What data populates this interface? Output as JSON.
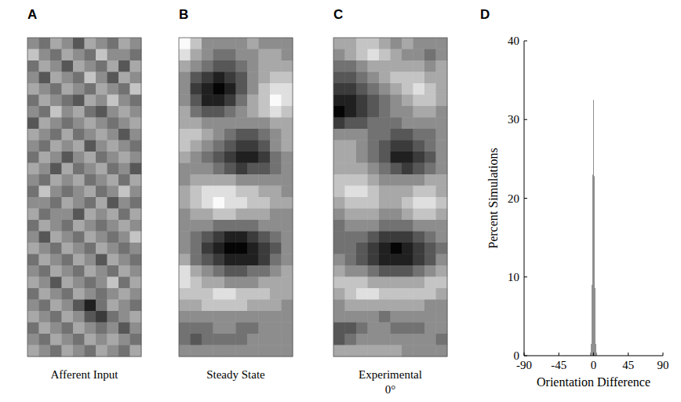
{
  "chart_data": [
    {
      "type": "heatmap",
      "label": "A",
      "title": "Afferent Input",
      "range": [
        0,
        9
      ],
      "cells": [
        [
          5,
          4,
          6,
          5,
          3,
          6,
          5,
          4,
          6,
          5
        ],
        [
          7,
          5,
          4,
          6,
          5,
          4,
          7,
          5,
          5,
          4
        ],
        [
          4,
          6,
          5,
          3,
          6,
          5,
          4,
          6,
          3,
          6
        ],
        [
          5,
          3,
          6,
          5,
          4,
          7,
          5,
          3,
          6,
          5
        ],
        [
          6,
          5,
          4,
          6,
          5,
          4,
          6,
          5,
          4,
          7
        ],
        [
          4,
          6,
          5,
          4,
          3,
          6,
          5,
          7,
          5,
          4
        ],
        [
          5,
          4,
          7,
          5,
          6,
          4,
          3,
          5,
          6,
          5
        ],
        [
          3,
          6,
          5,
          4,
          5,
          6,
          5,
          4,
          5,
          6
        ],
        [
          6,
          5,
          4,
          6,
          4,
          5,
          6,
          5,
          3,
          5
        ],
        [
          5,
          4,
          6,
          5,
          6,
          3,
          5,
          6,
          5,
          4
        ],
        [
          4,
          6,
          5,
          3,
          5,
          6,
          4,
          5,
          6,
          5
        ],
        [
          6,
          5,
          3,
          6,
          4,
          5,
          6,
          4,
          5,
          3
        ],
        [
          5,
          4,
          6,
          5,
          6,
          4,
          5,
          6,
          4,
          6
        ],
        [
          4,
          7,
          5,
          4,
          5,
          6,
          4,
          5,
          7,
          5
        ],
        [
          5,
          5,
          4,
          6,
          5,
          4,
          6,
          3,
          5,
          4
        ],
        [
          6,
          4,
          5,
          5,
          3,
          6,
          5,
          6,
          4,
          6
        ],
        [
          4,
          6,
          5,
          4,
          6,
          5,
          4,
          5,
          6,
          5
        ],
        [
          5,
          3,
          6,
          5,
          4,
          6,
          5,
          4,
          5,
          7
        ],
        [
          6,
          5,
          4,
          6,
          5,
          4,
          6,
          5,
          4,
          5
        ],
        [
          4,
          6,
          5,
          4,
          6,
          5,
          3,
          6,
          5,
          4
        ],
        [
          5,
          4,
          6,
          5,
          4,
          6,
          5,
          4,
          6,
          5
        ],
        [
          6,
          5,
          3,
          6,
          5,
          4,
          5,
          7,
          4,
          6
        ],
        [
          4,
          6,
          5,
          4,
          6,
          5,
          4,
          5,
          6,
          5
        ],
        [
          5,
          4,
          6,
          5,
          3,
          1,
          4,
          6,
          5,
          4
        ],
        [
          6,
          5,
          4,
          6,
          5,
          3,
          2,
          4,
          5,
          6
        ],
        [
          4,
          6,
          5,
          4,
          6,
          5,
          4,
          5,
          3,
          5
        ],
        [
          5,
          4,
          6,
          5,
          4,
          6,
          5,
          6,
          5,
          4
        ],
        [
          6,
          5,
          4,
          6,
          5,
          4,
          6,
          5,
          4,
          6
        ]
      ]
    },
    {
      "type": "heatmap",
      "label": "B",
      "title": "Steady State",
      "range": [
        0,
        9
      ],
      "cells": [
        [
          9,
          7,
          5,
          5,
          5,
          5,
          6,
          5,
          5,
          5
        ],
        [
          8,
          6,
          5,
          4,
          4,
          5,
          5,
          6,
          6,
          5
        ],
        [
          6,
          5,
          4,
          3,
          3,
          4,
          5,
          6,
          6,
          6
        ],
        [
          5,
          3,
          2,
          1,
          2,
          3,
          5,
          6,
          7,
          7
        ],
        [
          5,
          2,
          1,
          0,
          1,
          3,
          5,
          7,
          8,
          8
        ],
        [
          5,
          3,
          1,
          1,
          2,
          4,
          6,
          7,
          9,
          8
        ],
        [
          6,
          4,
          3,
          3,
          4,
          5,
          6,
          7,
          8,
          7
        ],
        [
          6,
          6,
          5,
          5,
          5,
          5,
          5,
          5,
          6,
          6
        ],
        [
          7,
          7,
          6,
          5,
          4,
          3,
          3,
          4,
          5,
          6
        ],
        [
          7,
          6,
          5,
          4,
          3,
          2,
          2,
          3,
          5,
          6
        ],
        [
          6,
          5,
          4,
          3,
          2,
          1,
          1,
          2,
          4,
          5
        ],
        [
          5,
          5,
          5,
          4,
          3,
          2,
          3,
          3,
          4,
          5
        ],
        [
          5,
          6,
          6,
          6,
          6,
          5,
          5,
          5,
          5,
          5
        ],
        [
          6,
          7,
          8,
          8,
          8,
          7,
          7,
          6,
          6,
          5
        ],
        [
          6,
          7,
          8,
          9,
          8,
          8,
          7,
          7,
          6,
          6
        ],
        [
          5,
          6,
          6,
          7,
          7,
          6,
          6,
          6,
          5,
          5
        ],
        [
          5,
          5,
          5,
          4,
          4,
          4,
          4,
          5,
          5,
          5
        ],
        [
          5,
          4,
          3,
          2,
          1,
          1,
          2,
          3,
          4,
          5
        ],
        [
          5,
          4,
          2,
          1,
          0,
          0,
          1,
          2,
          3,
          5
        ],
        [
          6,
          4,
          3,
          2,
          1,
          1,
          1,
          2,
          4,
          5
        ],
        [
          8,
          6,
          5,
          4,
          3,
          3,
          4,
          4,
          5,
          6
        ],
        [
          8,
          7,
          6,
          6,
          5,
          5,
          5,
          6,
          6,
          6
        ],
        [
          7,
          7,
          7,
          8,
          8,
          7,
          7,
          7,
          6,
          6
        ],
        [
          6,
          6,
          7,
          7,
          7,
          7,
          6,
          6,
          6,
          5
        ],
        [
          5,
          5,
          5,
          5,
          5,
          5,
          5,
          5,
          5,
          5
        ],
        [
          4,
          4,
          4,
          5,
          5,
          4,
          4,
          5,
          5,
          5
        ],
        [
          4,
          3,
          4,
          4,
          4,
          4,
          5,
          5,
          5,
          5
        ],
        [
          5,
          5,
          5,
          5,
          5,
          5,
          5,
          5,
          5,
          5
        ]
      ]
    },
    {
      "type": "heatmap",
      "label": "C",
      "title": "Experimental\n0°",
      "range": [
        0,
        9
      ],
      "cells": [
        [
          6,
          6,
          7,
          7,
          6,
          5,
          6,
          5,
          5,
          5
        ],
        [
          5,
          6,
          7,
          8,
          7,
          6,
          5,
          5,
          4,
          5
        ],
        [
          4,
          4,
          5,
          6,
          6,
          6,
          6,
          6,
          5,
          6
        ],
        [
          3,
          3,
          4,
          5,
          6,
          7,
          7,
          7,
          6,
          6
        ],
        [
          2,
          2,
          3,
          4,
          5,
          6,
          7,
          8,
          7,
          6
        ],
        [
          1,
          1,
          2,
          3,
          4,
          5,
          6,
          7,
          7,
          6
        ],
        [
          0,
          1,
          2,
          3,
          4,
          5,
          5,
          6,
          6,
          5
        ],
        [
          2,
          3,
          3,
          4,
          4,
          4,
          5,
          5,
          5,
          5
        ],
        [
          5,
          5,
          5,
          4,
          4,
          3,
          3,
          4,
          4,
          5
        ],
        [
          6,
          6,
          5,
          4,
          3,
          2,
          2,
          3,
          4,
          5
        ],
        [
          6,
          6,
          5,
          4,
          3,
          1,
          1,
          2,
          3,
          5
        ],
        [
          6,
          6,
          6,
          5,
          4,
          3,
          2,
          3,
          4,
          5
        ],
        [
          7,
          7,
          7,
          6,
          5,
          5,
          5,
          5,
          6,
          6
        ],
        [
          7,
          8,
          8,
          7,
          6,
          6,
          6,
          7,
          7,
          6
        ],
        [
          6,
          7,
          7,
          7,
          6,
          6,
          7,
          8,
          8,
          7
        ],
        [
          5,
          6,
          6,
          6,
          5,
          5,
          6,
          7,
          7,
          6
        ],
        [
          4,
          5,
          5,
          5,
          4,
          4,
          4,
          5,
          5,
          5
        ],
        [
          4,
          4,
          4,
          3,
          2,
          2,
          2,
          3,
          4,
          5
        ],
        [
          4,
          4,
          3,
          2,
          1,
          0,
          1,
          2,
          3,
          4
        ],
        [
          5,
          4,
          3,
          2,
          1,
          1,
          1,
          2,
          3,
          5
        ],
        [
          6,
          5,
          5,
          4,
          3,
          3,
          3,
          4,
          5,
          6
        ],
        [
          7,
          7,
          7,
          6,
          6,
          6,
          6,
          6,
          7,
          7
        ],
        [
          6,
          7,
          8,
          8,
          7,
          7,
          7,
          7,
          7,
          6
        ],
        [
          5,
          6,
          6,
          6,
          6,
          6,
          6,
          6,
          5,
          5
        ],
        [
          5,
          5,
          5,
          5,
          4,
          5,
          5,
          5,
          5,
          5
        ],
        [
          3,
          3,
          4,
          5,
          5,
          4,
          4,
          4,
          5,
          5
        ],
        [
          3,
          4,
          5,
          5,
          5,
          5,
          5,
          5,
          5,
          4
        ],
        [
          6,
          6,
          6,
          6,
          6,
          6,
          5,
          5,
          5,
          5
        ]
      ]
    },
    {
      "type": "histogram",
      "label": "D",
      "x_label": "Orientation Difference",
      "y_label": "Percent Simulations",
      "bins": [
        -4.5,
        -3.5,
        -2.5,
        -1.5,
        -0.5,
        0.5,
        1.5,
        2.5,
        3.5,
        4.5
      ],
      "counts": [
        0.4,
        1.5,
        9,
        23,
        32.5,
        22.8,
        8.6,
        1.5,
        0.4
      ],
      "color": "#8c8c8c",
      "xlim": [
        -90,
        90
      ],
      "xticks": [
        -90,
        -45,
        0,
        45,
        90
      ],
      "ylim": [
        0,
        40
      ],
      "yticks": [
        0,
        10,
        20,
        30,
        40
      ]
    }
  ]
}
